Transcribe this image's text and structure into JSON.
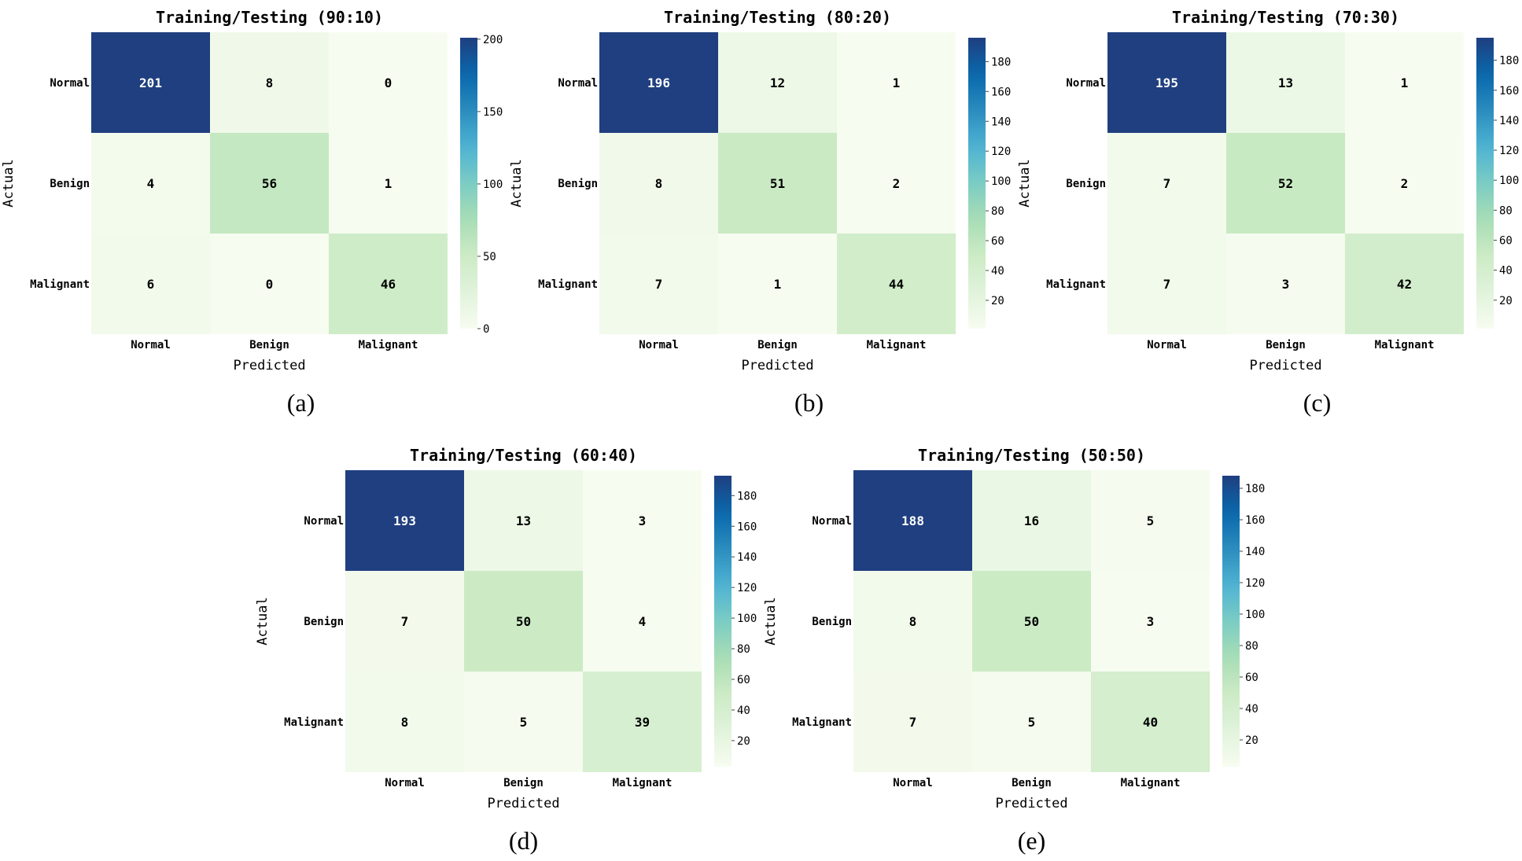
{
  "colors": {
    "scale": [
      "#f7fcf0",
      "#e0f3db",
      "#ccebc5",
      "#a8ddb5",
      "#7bccc4",
      "#4eb3d3",
      "#2b8cbe",
      "#0868ac",
      "#1f3f80"
    ],
    "text_dark": "#000000",
    "text_light": "#ffffff"
  },
  "chart_data": [
    {
      "type": "heatmap",
      "title": "Training/Testing (90:10)",
      "xlabel": "Predicted",
      "ylabel": "Actual",
      "x_categories": [
        "Normal",
        "Benign",
        "Malignant"
      ],
      "y_categories": [
        "Normal",
        "Benign",
        "Malignant"
      ],
      "values": [
        [
          201,
          8,
          0
        ],
        [
          4,
          56,
          1
        ],
        [
          6,
          0,
          46
        ]
      ],
      "colorbar": {
        "min": 0,
        "max": 201,
        "ticks": [
          0,
          50,
          100,
          150,
          200
        ]
      },
      "caption": "(a)"
    },
    {
      "type": "heatmap",
      "title": "Training/Testing (80:20)",
      "xlabel": "Predicted",
      "ylabel": "Actual",
      "x_categories": [
        "Normal",
        "Benign",
        "Malignant"
      ],
      "y_categories": [
        "Normal",
        "Benign",
        "Malignant"
      ],
      "values": [
        [
          196,
          12,
          1
        ],
        [
          8,
          51,
          2
        ],
        [
          7,
          1,
          44
        ]
      ],
      "colorbar": {
        "min": 1,
        "max": 196,
        "ticks": [
          20,
          40,
          60,
          80,
          100,
          120,
          140,
          160,
          180
        ]
      },
      "caption": "(b)"
    },
    {
      "type": "heatmap",
      "title": "Training/Testing (70:30)",
      "xlabel": "Predicted",
      "ylabel": "Actual",
      "x_categories": [
        "Normal",
        "Benign",
        "Malignant"
      ],
      "y_categories": [
        "Normal",
        "Benign",
        "Malignant"
      ],
      "values": [
        [
          195,
          13,
          1
        ],
        [
          7,
          52,
          2
        ],
        [
          7,
          3,
          42
        ]
      ],
      "colorbar": {
        "min": 1,
        "max": 195,
        "ticks": [
          20,
          40,
          60,
          80,
          100,
          120,
          140,
          160,
          180
        ]
      },
      "caption": "(c)"
    },
    {
      "type": "heatmap",
      "title": "Training/Testing (60:40)",
      "xlabel": "Predicted",
      "ylabel": "Actual",
      "x_categories": [
        "Normal",
        "Benign",
        "Malignant"
      ],
      "y_categories": [
        "Normal",
        "Benign",
        "Malignant"
      ],
      "values": [
        [
          193,
          13,
          3
        ],
        [
          7,
          50,
          4
        ],
        [
          8,
          5,
          39
        ]
      ],
      "colorbar": {
        "min": 3,
        "max": 193,
        "ticks": [
          20,
          40,
          60,
          80,
          100,
          120,
          140,
          160,
          180
        ]
      },
      "caption": "(d)"
    },
    {
      "type": "heatmap",
      "title": "Training/Testing (50:50)",
      "xlabel": "Predicted",
      "ylabel": "Actual",
      "x_categories": [
        "Normal",
        "Benign",
        "Malignant"
      ],
      "y_categories": [
        "Normal",
        "Benign",
        "Malignant"
      ],
      "values": [
        [
          188,
          16,
          5
        ],
        [
          8,
          50,
          3
        ],
        [
          7,
          5,
          40
        ]
      ],
      "colorbar": {
        "min": 3,
        "max": 188,
        "ticks": [
          20,
          40,
          60,
          80,
          100,
          120,
          140,
          160,
          180
        ]
      },
      "caption": "(e)"
    }
  ]
}
